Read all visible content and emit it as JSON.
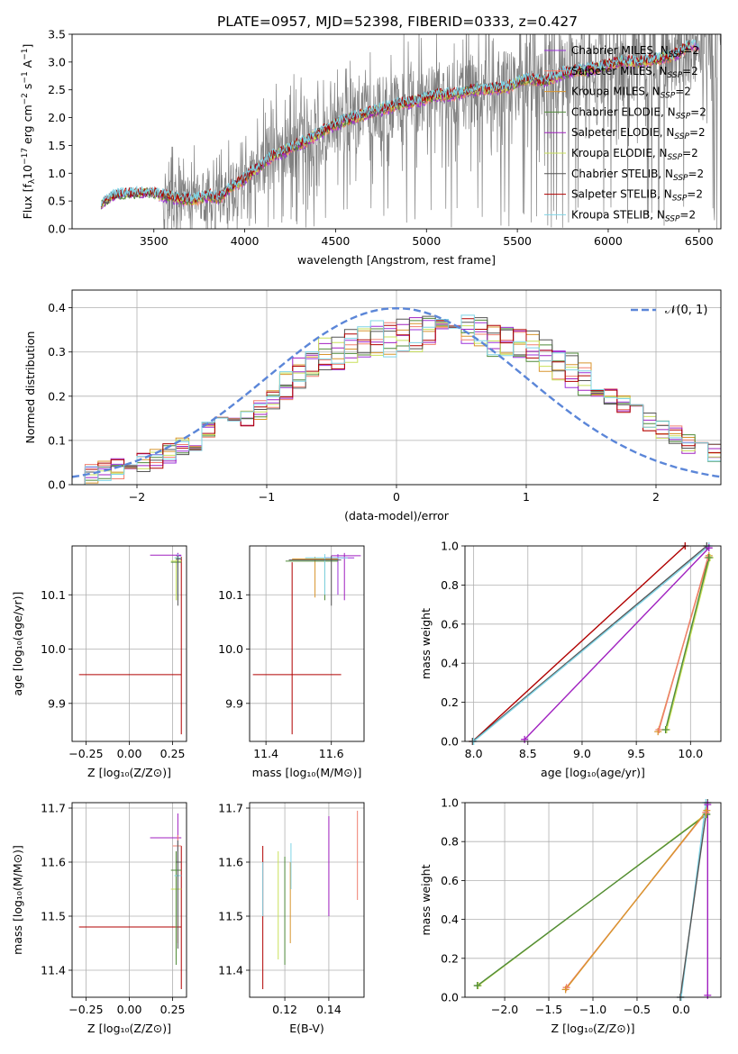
{
  "title": "PLATE=0957, MJD=52398, FIBERID=0333, z=0.427",
  "colors": {
    "Chabrier MILES": "#9b30d9",
    "Salpeter MILES": "#f07f6f",
    "Kroupa MILES": "#d8952e",
    "Chabrier ELODIE": "#4f8a3a",
    "Salpeter ELODIE": "#a020c0",
    "Kroupa ELODIE": "#c8e05a",
    "Chabrier STELIB": "#555555",
    "Salpeter STELIB": "#b00000",
    "Kroupa STELIB": "#7fd4e6",
    "normal": "#5b86d8",
    "data": "#808080"
  },
  "chart_data": [
    {
      "id": "spectrum",
      "type": "line",
      "xlabel": "wavelength [Angstrom, rest frame]",
      "ylabel": "Flux [fλ10⁻¹⁷ erg cm⁻² s⁻¹ A⁻¹]",
      "xlim": [
        3050,
        6620
      ],
      "ylim": [
        0,
        3.5
      ],
      "xticks": [
        3500,
        4000,
        4500,
        5000,
        5500,
        6000,
        6500
      ],
      "yticks": [
        0.0,
        0.5,
        1.0,
        1.5,
        2.0,
        2.5,
        3.0,
        3.5
      ],
      "grid": false,
      "legend_position": "right",
      "legend": [
        "Chabrier MILES, N_SSP=2",
        "Salpeter MILES, N_SSP=2",
        "Kroupa MILES, N_SSP=2",
        "Chabrier ELODIE, N_SSP=2",
        "Salpeter ELODIE, N_SSP=2",
        "Kroupa ELODIE, N_SSP=2",
        "Chabrier STELIB, N_SSP=2",
        "Salpeter STELIB, N_SSP=2",
        "Kroupa STELIB, N_SSP=2"
      ],
      "continuum": {
        "x": [
          3210,
          3300,
          3400,
          3480,
          3560,
          3640,
          3720,
          3800,
          3860,
          3920,
          3980,
          4050,
          4150,
          4250,
          4350,
          4450,
          4550,
          4650,
          4750,
          4850,
          4950,
          5050,
          5150,
          5250,
          5350,
          5450,
          5550,
          5650,
          5750,
          5850,
          5950,
          6050,
          6150,
          6250,
          6350,
          6450
        ],
        "y": [
          0.45,
          0.62,
          0.63,
          0.65,
          0.6,
          0.55,
          0.52,
          0.6,
          0.55,
          0.75,
          0.85,
          1.05,
          1.3,
          1.45,
          1.6,
          1.8,
          1.95,
          2.05,
          2.15,
          2.25,
          2.3,
          2.4,
          2.42,
          2.5,
          2.52,
          2.55,
          2.7,
          2.65,
          2.8,
          2.85,
          2.9,
          3.0,
          3.0,
          3.05,
          3.1,
          3.3
        ]
      }
    },
    {
      "id": "residuals",
      "type": "line",
      "xlabel": "(data-model)/error",
      "ylabel": "Normed distribution",
      "xlim": [
        -2.5,
        2.5
      ],
      "ylim": [
        0,
        0.44
      ],
      "xticks": [
        -2,
        -1,
        0,
        1,
        2
      ],
      "yticks": [
        0.0,
        0.1,
        0.2,
        0.3,
        0.4
      ],
      "grid": true,
      "legend_position": "top-right",
      "legend": [
        "𝒩(0, 1)"
      ],
      "bin_edges": [
        -2.5,
        -2.4,
        -2.3,
        -2.2,
        -2.1,
        -2.0,
        -1.9,
        -1.8,
        -1.7,
        -1.6,
        -1.5,
        -1.4,
        -1.3,
        -1.2,
        -1.1,
        -1.0,
        -0.9,
        -0.8,
        -0.7,
        -0.6,
        -0.5,
        -0.4,
        -0.3,
        -0.2,
        -0.1,
        0.0,
        0.1,
        0.2,
        0.3,
        0.4,
        0.5,
        0.6,
        0.7,
        0.8,
        0.9,
        1.0,
        1.1,
        1.2,
        1.3,
        1.4,
        1.5,
        1.6,
        1.7,
        1.8,
        1.9,
        2.0,
        2.1,
        2.2,
        2.3,
        2.4,
        2.5
      ],
      "hist_base": [
        0.02,
        0.025,
        0.03,
        0.035,
        0.04,
        0.05,
        0.06,
        0.07,
        0.09,
        0.1,
        0.12,
        0.13,
        0.14,
        0.15,
        0.17,
        0.19,
        0.22,
        0.25,
        0.27,
        0.29,
        0.3,
        0.31,
        0.32,
        0.33,
        0.33,
        0.34,
        0.34,
        0.35,
        0.35,
        0.36,
        0.35,
        0.34,
        0.33,
        0.33,
        0.32,
        0.31,
        0.29,
        0.27,
        0.26,
        0.24,
        0.22,
        0.2,
        0.18,
        0.16,
        0.14,
        0.12,
        0.11,
        0.09,
        0.08,
        0.07
      ]
    },
    {
      "id": "age_Z",
      "type": "scatter",
      "xlabel": "Z [log₁₀(Z/Z⊙)]",
      "ylabel": "age  [log₁₀(age/yr)]",
      "xlim": [
        -0.33,
        0.33
      ],
      "ylim": [
        9.83,
        10.19
      ],
      "xticks": [
        -0.25,
        0.0,
        0.25
      ],
      "xtick_labels": [
        "−0.25",
        "0.00",
        "0.25"
      ],
      "yticks": [
        9.9,
        10.0,
        10.1
      ],
      "grid": true,
      "points": [
        {
          "name": "Salpeter STELIB",
          "x": 0.3,
          "y": 9.953,
          "x0": -0.29,
          "x1": 0.3,
          "y0": 9.843,
          "y1": 10.17
        },
        {
          "name": "Chabrier MILES",
          "x": 0.28,
          "y": 10.172,
          "x0": 0.27,
          "x1": 0.3,
          "y0": 10.15,
          "y1": 10.177
        },
        {
          "name": "Salpeter ELODIE",
          "x": 0.28,
          "y": 10.173,
          "x0": 0.12,
          "x1": 0.3,
          "y0": 10.1,
          "y1": 10.177
        },
        {
          "name": "Kroupa ELODIE",
          "x": 0.27,
          "y": 10.162,
          "x0": 0.24,
          "x1": 0.3,
          "y0": 10.09,
          "y1": 10.17
        },
        {
          "name": "Chabrier ELODIE",
          "x": 0.28,
          "y": 10.16,
          "x0": 0.24,
          "x1": 0.3,
          "y0": 10.09,
          "y1": 10.168
        },
        {
          "name": "Kroupa STELIB",
          "x": 0.28,
          "y": 10.168,
          "x0": 0.26,
          "x1": 0.3,
          "y0": 10.1,
          "y1": 10.175
        },
        {
          "name": "Chabrier STELIB",
          "x": 0.28,
          "y": 10.166,
          "x0": 0.27,
          "x1": 0.3,
          "y0": 10.08,
          "y1": 10.172
        }
      ]
    },
    {
      "id": "age_mass",
      "type": "scatter",
      "xlabel": "mass [log₁₀(M/M⊙)]",
      "xlim": [
        11.35,
        11.7
      ],
      "ylim": [
        9.83,
        10.19
      ],
      "xticks": [
        11.4,
        11.6
      ],
      "yticks": [
        9.9,
        10.0,
        10.1
      ],
      "grid": true,
      "points": [
        {
          "name": "Salpeter STELIB",
          "x": 11.48,
          "y": 9.953,
          "x0": 11.36,
          "x1": 11.63,
          "y0": 9.843,
          "y1": 10.16
        },
        {
          "name": "Salpeter ELODIE",
          "x": 11.64,
          "y": 10.172,
          "x0": 11.6,
          "x1": 11.69,
          "y0": 10.09,
          "y1": 10.177
        },
        {
          "name": "Chabrier MILES",
          "x": 11.62,
          "y": 10.168,
          "x0": 11.58,
          "x1": 11.67,
          "y0": 10.1,
          "y1": 10.175
        },
        {
          "name": "Kroupa MILES",
          "x": 11.55,
          "y": 10.166,
          "x0": 11.48,
          "x1": 11.62,
          "y0": 10.095,
          "y1": 10.17
        },
        {
          "name": "Chabrier ELODIE",
          "x": 11.58,
          "y": 10.162,
          "x0": 11.46,
          "x1": 11.62,
          "y0": 10.09,
          "y1": 10.168
        },
        {
          "name": "Kroupa STELIB",
          "x": 11.58,
          "y": 10.168,
          "x0": 11.52,
          "x1": 11.65,
          "y0": 10.1,
          "y1": 10.175
        },
        {
          "name": "Chabrier STELIB",
          "x": 11.6,
          "y": 10.164,
          "x0": 11.47,
          "x1": 11.63,
          "y0": 10.08,
          "y1": 10.172
        }
      ]
    },
    {
      "id": "weight_age",
      "type": "line",
      "xlabel": "age  [log₁₀(age/yr)]",
      "ylabel": "mass weight",
      "xlim": [
        7.92,
        10.28
      ],
      "ylim": [
        0,
        1.0
      ],
      "xticks": [
        8.0,
        8.5,
        9.0,
        9.5,
        10.0
      ],
      "yticks": [
        0.0,
        0.2,
        0.4,
        0.6,
        0.8,
        1.0
      ],
      "grid": true,
      "series": [
        {
          "name": "Salpeter STELIB",
          "x": [
            7.99,
            9.95
          ],
          "y": [
            0.0,
            1.0
          ]
        },
        {
          "name": "Chabrier STELIB",
          "x": [
            7.99,
            10.15
          ],
          "y": [
            0.0,
            1.0
          ]
        },
        {
          "name": "Kroupa STELIB",
          "x": [
            8.0,
            10.17
          ],
          "y": [
            0.0,
            1.0
          ]
        },
        {
          "name": "Salpeter ELODIE",
          "x": [
            8.47,
            10.17
          ],
          "y": [
            0.01,
            0.99
          ]
        },
        {
          "name": "Kroupa MILES",
          "x": [
            9.7,
            10.17
          ],
          "y": [
            0.05,
            0.95
          ]
        },
        {
          "name": "Salpeter MILES",
          "x": [
            9.71,
            10.16
          ],
          "y": [
            0.06,
            0.94
          ]
        },
        {
          "name": "Kroupa ELODIE",
          "x": [
            9.78,
            10.18
          ],
          "y": [
            0.06,
            0.94
          ]
        },
        {
          "name": "Chabrier ELODIE",
          "x": [
            9.77,
            10.17
          ],
          "y": [
            0.06,
            0.94
          ]
        }
      ]
    },
    {
      "id": "mass_Z",
      "type": "scatter",
      "xlabel": "Z [log₁₀(Z/Z⊙)]",
      "ylabel": "mass [log₁₀(M/M⊙)]",
      "xlim": [
        -0.33,
        0.33
      ],
      "ylim": [
        11.35,
        11.71
      ],
      "xticks": [
        -0.25,
        0.0,
        0.25
      ],
      "xtick_labels": [
        "−0.25",
        "0.00",
        "0.25"
      ],
      "yticks": [
        11.4,
        11.5,
        11.6,
        11.7
      ],
      "grid": true,
      "points": [
        {
          "name": "Salpeter STELIB",
          "x": 0.3,
          "y": 11.48,
          "x0": -0.29,
          "x1": 0.3,
          "y0": 11.365,
          "y1": 11.63
        },
        {
          "name": "Salpeter ELODIE",
          "x": 0.28,
          "y": 11.645,
          "x0": 0.12,
          "x1": 0.3,
          "y0": 11.6,
          "y1": 11.69
        },
        {
          "name": "Salpeter MILES",
          "x": 0.28,
          "y": 11.63,
          "x0": 0.25,
          "x1": 0.3,
          "y0": 11.45,
          "y1": 11.65
        },
        {
          "name": "Kroupa ELODIE",
          "x": 0.27,
          "y": 11.55,
          "x0": 0.24,
          "x1": 0.3,
          "y0": 11.42,
          "y1": 11.62
        },
        {
          "name": "Chabrier ELODIE",
          "x": 0.27,
          "y": 11.585,
          "x0": 0.24,
          "x1": 0.3,
          "y0": 11.41,
          "y1": 11.62
        },
        {
          "name": "Kroupa STELIB",
          "x": 0.28,
          "y": 11.575,
          "x0": 0.26,
          "x1": 0.3,
          "y0": 11.5,
          "y1": 11.64
        },
        {
          "name": "Chabrier STELIB",
          "x": 0.28,
          "y": 11.6,
          "x0": 0.27,
          "x1": 0.3,
          "y0": 11.44,
          "y1": 11.64
        }
      ]
    },
    {
      "id": "mass_ebv",
      "type": "scatter",
      "xlabel": "E(B-V)",
      "xlim": [
        0.104,
        0.156
      ],
      "ylim": [
        11.35,
        11.71
      ],
      "xticks": [
        0.12,
        0.14
      ],
      "yticks": [
        11.4,
        11.5,
        11.6,
        11.7
      ],
      "grid": true,
      "points": [
        {
          "name": "Salpeter STELIB",
          "x": 0.11,
          "y0": 11.365,
          "y1": 11.63
        },
        {
          "name": "Kroupa STELIB",
          "x": 0.11,
          "y0": 11.5,
          "y1": 11.6
        },
        {
          "name": "Kroupa ELODIE",
          "x": 0.117,
          "y0": 11.42,
          "y1": 11.62
        },
        {
          "name": "Chabrier ELODIE",
          "x": 0.12,
          "y0": 11.41,
          "y1": 11.61
        },
        {
          "name": "Kroupa MILES",
          "x": 0.1225,
          "y0": 11.45,
          "y1": 11.6
        },
        {
          "name": "Kroupa STELIB",
          "x": 0.1228,
          "y0": 11.55,
          "y1": 11.635
        },
        {
          "name": "Salpeter ELODIE",
          "x": 0.14,
          "y0": 11.5,
          "y1": 11.685
        },
        {
          "name": "Salpeter MILES",
          "x": 0.153,
          "y0": 11.53,
          "y1": 11.695
        }
      ]
    },
    {
      "id": "weight_Z",
      "type": "line",
      "xlabel": "Z [log₁₀(Z/Z⊙)]",
      "ylabel": "mass weight",
      "xlim": [
        -2.45,
        0.45
      ],
      "ylim": [
        0,
        1.0
      ],
      "xticks": [
        -2.0,
        -1.5,
        -1.0,
        -0.5,
        0.0
      ],
      "xtick_labels": [
        "−2.0",
        "−1.5",
        "−1.0",
        "−0.5",
        "0.0"
      ],
      "yticks": [
        0.0,
        0.2,
        0.4,
        0.6,
        0.8,
        1.0
      ],
      "grid": true,
      "series": [
        {
          "name": "Kroupa ELODIE",
          "x": [
            -2.3,
            0.28
          ],
          "y": [
            0.06,
            0.94
          ]
        },
        {
          "name": "Chabrier ELODIE",
          "x": [
            -2.31,
            0.29
          ],
          "y": [
            0.06,
            0.94
          ]
        },
        {
          "name": "Salpeter MILES",
          "x": [
            -1.3,
            0.28
          ],
          "y": [
            0.05,
            0.95
          ]
        },
        {
          "name": "Kroupa MILES",
          "x": [
            -1.31,
            0.29
          ],
          "y": [
            0.04,
            0.96
          ]
        },
        {
          "name": "Kroupa STELIB",
          "x": [
            0.0,
            0.28
          ],
          "y": [
            0.0,
            1.0
          ]
        },
        {
          "name": "Chabrier STELIB",
          "x": [
            -0.01,
            0.3
          ],
          "y": [
            0.0,
            1.0
          ]
        },
        {
          "name": "Salpeter ELODIE",
          "x": [
            0.3,
            0.3
          ],
          "y": [
            0.01,
            0.99
          ]
        }
      ]
    }
  ]
}
